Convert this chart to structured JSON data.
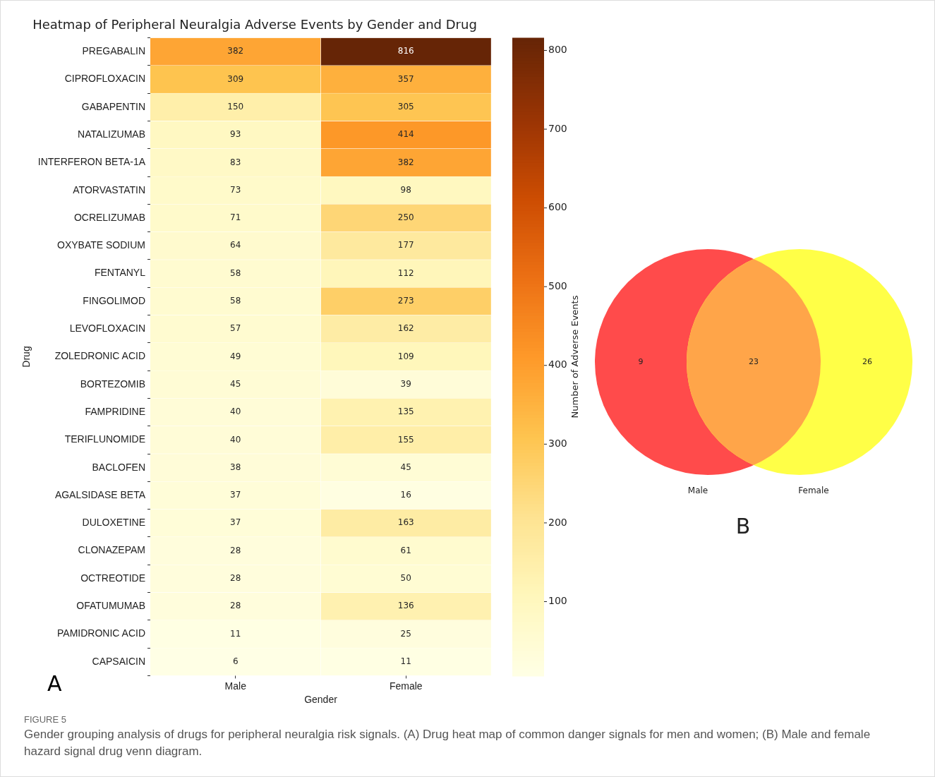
{
  "chart_data": [
    {
      "type": "heatmap",
      "title": "Heatmap of Peripheral Neuralgia Adverse Events by Gender and Drug",
      "xlabel": "Gender",
      "ylabel": "Drug",
      "clabel": "Number of Adverse Events",
      "categories": [
        "Male",
        "Female"
      ],
      "y_categories": [
        "PREGABALIN",
        "CIPROFLOXACIN",
        "GABAPENTIN",
        "NATALIZUMAB",
        "INTERFERON BETA-1A",
        "ATORVASTATIN",
        "OCRELIZUMAB",
        "OXYBATE SODIUM",
        "FENTANYL",
        "FINGOLIMOD",
        "LEVOFLOXACIN",
        "ZOLEDRONIC ACID",
        "BORTEZOMIB",
        "FAMPRIDINE",
        "TERIFLUNOMIDE",
        "BACLOFEN",
        "AGALSIDASE BETA",
        "DULOXETINE",
        "CLONAZEPAM",
        "OCTREOTIDE",
        "OFATUMUMAB",
        "PAMIDRONIC ACID",
        "CAPSAICIN"
      ],
      "cells": [
        [
          382,
          816
        ],
        [
          309,
          357
        ],
        [
          150,
          305
        ],
        [
          93,
          414
        ],
        [
          83,
          382
        ],
        [
          73,
          98
        ],
        [
          71,
          250
        ],
        [
          64,
          177
        ],
        [
          58,
          112
        ],
        [
          58,
          273
        ],
        [
          57,
          162
        ],
        [
          49,
          109
        ],
        [
          45,
          39
        ],
        [
          40,
          135
        ],
        [
          40,
          155
        ],
        [
          38,
          45
        ],
        [
          37,
          16
        ],
        [
          37,
          163
        ],
        [
          28,
          61
        ],
        [
          28,
          50
        ],
        [
          28,
          136
        ],
        [
          11,
          25
        ],
        [
          6,
          11
        ]
      ],
      "clim": [
        6,
        816
      ],
      "cticks": [
        100,
        200,
        300,
        400,
        500,
        600,
        700,
        800
      ],
      "data_labels": true,
      "annotations": [
        "A",
        "FIGURE 5",
        "Gender grouping analysis of drugs for peripheral neuralgia risk signals. (A) Drug heat map of common danger signals for men and women; (B) Male and female hazard signal drug venn diagram."
      ]
    },
    {
      "type": "other",
      "categories": [
        "Male",
        "Female"
      ],
      "colors": [
        "#ff4b4b",
        "#ffff47"
      ],
      "annotations": [
        "9",
        "23",
        "26",
        "B"
      ]
    }
  ]
}
